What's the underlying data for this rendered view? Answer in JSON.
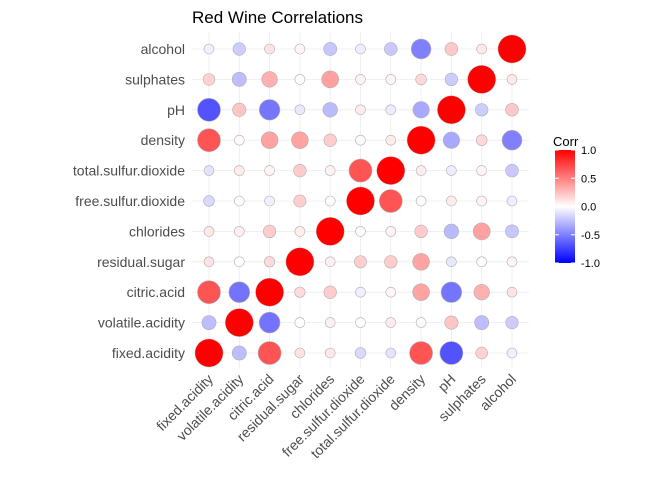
{
  "chart_data": {
    "type": "heatmap",
    "title": "Red Wine Correlations",
    "variables": [
      "fixed.acidity",
      "volatile.acidity",
      "citric.acid",
      "residual.sugar",
      "chlorides",
      "free.sulfur.dioxide",
      "total.sulfur.dioxide",
      "density",
      "pH",
      "sulphates",
      "alcohol"
    ],
    "matrix": [
      [
        1.0,
        -0.26,
        0.67,
        0.11,
        0.09,
        -0.15,
        -0.11,
        0.67,
        -0.68,
        0.18,
        -0.06
      ],
      [
        -0.26,
        1.0,
        -0.55,
        0.0,
        0.06,
        -0.01,
        0.08,
        0.02,
        0.23,
        -0.26,
        -0.2
      ],
      [
        0.67,
        -0.55,
        1.0,
        0.14,
        0.2,
        -0.06,
        0.04,
        0.36,
        -0.54,
        0.31,
        0.11
      ],
      [
        0.11,
        0.0,
        0.14,
        1.0,
        0.06,
        0.19,
        0.2,
        0.36,
        -0.09,
        0.01,
        0.04
      ],
      [
        0.09,
        0.06,
        0.2,
        0.06,
        1.0,
        0.01,
        0.05,
        0.2,
        -0.27,
        0.37,
        -0.22
      ],
      [
        -0.15,
        -0.01,
        -0.06,
        0.19,
        0.01,
        1.0,
        0.67,
        -0.02,
        0.07,
        0.05,
        -0.07
      ],
      [
        -0.11,
        0.08,
        0.04,
        0.2,
        0.05,
        0.67,
        1.0,
        0.07,
        -0.07,
        0.04,
        -0.21
      ],
      [
        0.67,
        0.02,
        0.36,
        0.36,
        0.2,
        -0.02,
        0.07,
        1.0,
        -0.34,
        0.15,
        -0.5
      ],
      [
        -0.68,
        0.23,
        -0.54,
        -0.09,
        -0.27,
        0.07,
        -0.07,
        -0.34,
        1.0,
        -0.2,
        0.21
      ],
      [
        0.18,
        -0.26,
        0.31,
        0.01,
        0.37,
        0.05,
        0.04,
        0.15,
        -0.2,
        1.0,
        0.09
      ],
      [
        -0.06,
        -0.2,
        0.11,
        0.04,
        -0.22,
        -0.07,
        -0.21,
        -0.5,
        0.21,
        0.09,
        1.0
      ]
    ],
    "x_order": [
      "fixed.acidity",
      "volatile.acidity",
      "citric.acid",
      "residual.sugar",
      "chlorides",
      "free.sulfur.dioxide",
      "total.sulfur.dioxide",
      "density",
      "pH",
      "sulphates",
      "alcohol"
    ],
    "y_order_bottom_to_top": [
      "fixed.acidity",
      "volatile.acidity",
      "citric.acid",
      "residual.sugar",
      "chlorides",
      "free.sulfur.dioxide",
      "total.sulfur.dioxide",
      "density",
      "pH",
      "sulphates",
      "alcohol"
    ],
    "legend": {
      "title": "Corr",
      "position": "right",
      "range": [
        -1.0,
        1.0
      ],
      "ticks": [
        1.0,
        0.5,
        0.0,
        -0.5,
        -1.0
      ],
      "tick_labels": [
        "1.0",
        "0.5",
        "0.0",
        "-0.5",
        "-1.0"
      ]
    },
    "colors": {
      "low": "#0000ff",
      "mid": "#ffffff",
      "high": "#ff0000"
    },
    "grid": true
  }
}
